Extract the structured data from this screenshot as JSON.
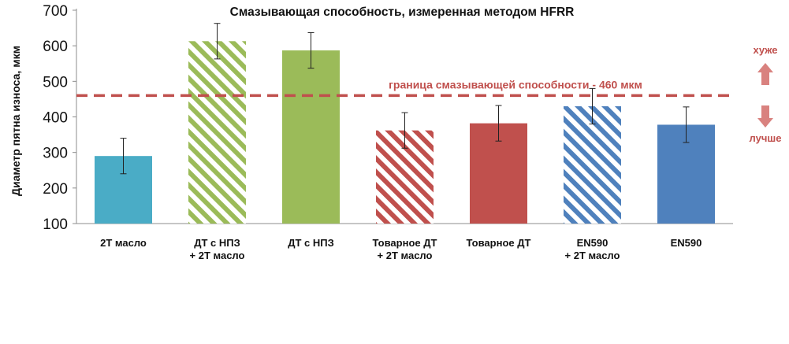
{
  "chart_data": {
    "type": "bar",
    "title": "Смазывающая способность, измеренная методом HFRR",
    "xlabel": "",
    "ylabel": "Диаметр пятна износа, мкм",
    "ylim": [
      100,
      700
    ],
    "yticks": [
      100,
      200,
      300,
      400,
      500,
      600,
      700
    ],
    "grid": false,
    "categories": [
      [
        "2Т масло"
      ],
      [
        "ДТ с НПЗ",
        "+ 2Т масло"
      ],
      [
        "ДТ с НПЗ"
      ],
      [
        "Товарное ДТ",
        "+ 2Т масло"
      ],
      [
        "Товарное ДТ"
      ],
      [
        "EN590",
        "+ 2Т масло"
      ],
      [
        "EN590"
      ]
    ],
    "values": [
      290,
      613,
      587,
      362,
      382,
      430,
      378
    ],
    "error": [
      50,
      50,
      50,
      50,
      50,
      50,
      50
    ],
    "colors": [
      "#4aacc6",
      "#9bbb59",
      "#9bbb59",
      "#c0504d",
      "#c0504d",
      "#4f81bd",
      "#4f81bd"
    ],
    "patterns": [
      "solid",
      "hatched",
      "solid",
      "hatched",
      "solid",
      "hatched",
      "solid"
    ],
    "threshold": {
      "value": 460,
      "label": "граница смазывающей способности - 460 мкм",
      "color": "#c0504d"
    },
    "annotations": {
      "worse": "хуже",
      "better": "лучше",
      "color": "#c0504d",
      "arrow_color": "#d9827f"
    }
  }
}
